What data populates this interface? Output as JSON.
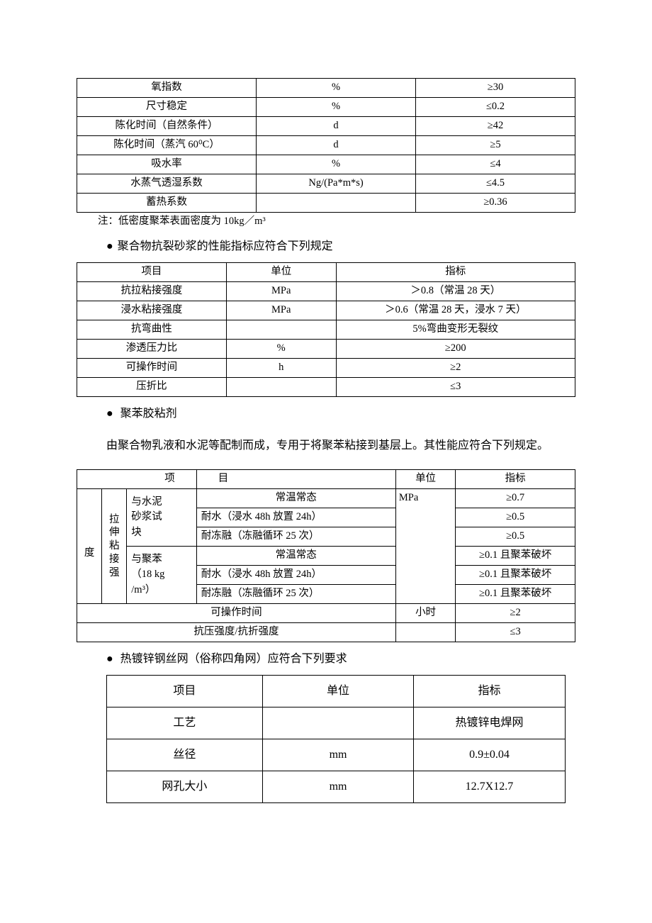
{
  "table1": {
    "col_widths": [
      "36%",
      "32%",
      "32%"
    ],
    "rows": [
      [
        "氧指数",
        "%",
        "≥30"
      ],
      [
        "尺寸稳定",
        "%",
        "≤0.2"
      ],
      [
        "陈化时间（自然条件）",
        "d",
        "≥42"
      ],
      [
        "陈化时间（蒸汽 60⁰C）",
        "d",
        "≥5"
      ],
      [
        "吸水率",
        "%",
        "≤4"
      ],
      [
        "水蒸气透湿系数",
        "Ng/(Pa*m*s)",
        "≤4.5"
      ],
      [
        "蓄热系数",
        "",
        "≥0.36"
      ]
    ]
  },
  "note1": "注：低密度聚苯表面密度为 10kg／m³",
  "heading2": "聚合物抗裂砂浆的性能指标应符合下列规定",
  "table2": {
    "col_widths": [
      "30%",
      "22%",
      "48%"
    ],
    "header": [
      "项目",
      "单位",
      "指标"
    ],
    "rows": [
      [
        "抗拉粘接强度",
        "MPa",
        "＞0.8（常温 28 天）"
      ],
      [
        "浸水粘接强度",
        "MPa",
        "＞0.6（常温 28 天，浸水 7 天）"
      ],
      [
        "抗弯曲性",
        "",
        "5%弯曲变形无裂纹"
      ],
      [
        "渗透压力比",
        "%",
        "≥200"
      ],
      [
        "可操作时间",
        "h",
        "≥2"
      ],
      [
        "压折比",
        "",
        "≤3"
      ]
    ]
  },
  "heading3": "聚苯胶粘剂",
  "para3": "由聚合物乳液和水泥等配制而成，专用于将聚苯粘接到基层上。其性能应符合下列规定。",
  "table3": {
    "header_project_l": "项",
    "header_project_r": "目",
    "header_unit": "单位",
    "header_spec": "指标",
    "vcol1": "拉伸粘接强",
    "vcol2": "度",
    "group1_label": "与水泥砂浆试块",
    "group2_label_l1": "与聚苯",
    "group2_label_l2": "（18 kg",
    "group2_label_l3": "/m³）",
    "r1": {
      "cond": "常温常态",
      "unit": "MPa",
      "spec": "≥0.7"
    },
    "r2": {
      "cond": "耐水（浸水 48h 放置 24h）",
      "spec": "≥0.5"
    },
    "r3": {
      "cond": "耐冻融（冻融循环 25 次）",
      "spec": "≥0.5"
    },
    "r4": {
      "cond": "常温常态",
      "spec": "≥0.1 且聚苯破坏"
    },
    "r5": {
      "cond": "耐水（浸水 48h 放置 24h）",
      "spec": "≥0.1 且聚苯破坏"
    },
    "r6": {
      "cond": "耐冻融（冻融循环 25 次）",
      "spec": "≥0.1 且聚苯破坏"
    },
    "r7": {
      "label": "可操作时间",
      "unit": "小时",
      "spec": "≥2"
    },
    "r8": {
      "label": "抗压强度/抗折强度",
      "unit": "",
      "spec": "≤3"
    }
  },
  "heading4": "热镀锌钢丝网（俗称四角网）应符合下列要求",
  "table4": {
    "header": [
      "项目",
      "单位",
      "指标"
    ],
    "rows": [
      [
        "工艺",
        "",
        "热镀锌电焊网"
      ],
      [
        "丝径",
        "mm",
        "0.9±0.04"
      ],
      [
        "网孔大小",
        "mm",
        "12.7X12.7"
      ]
    ]
  }
}
